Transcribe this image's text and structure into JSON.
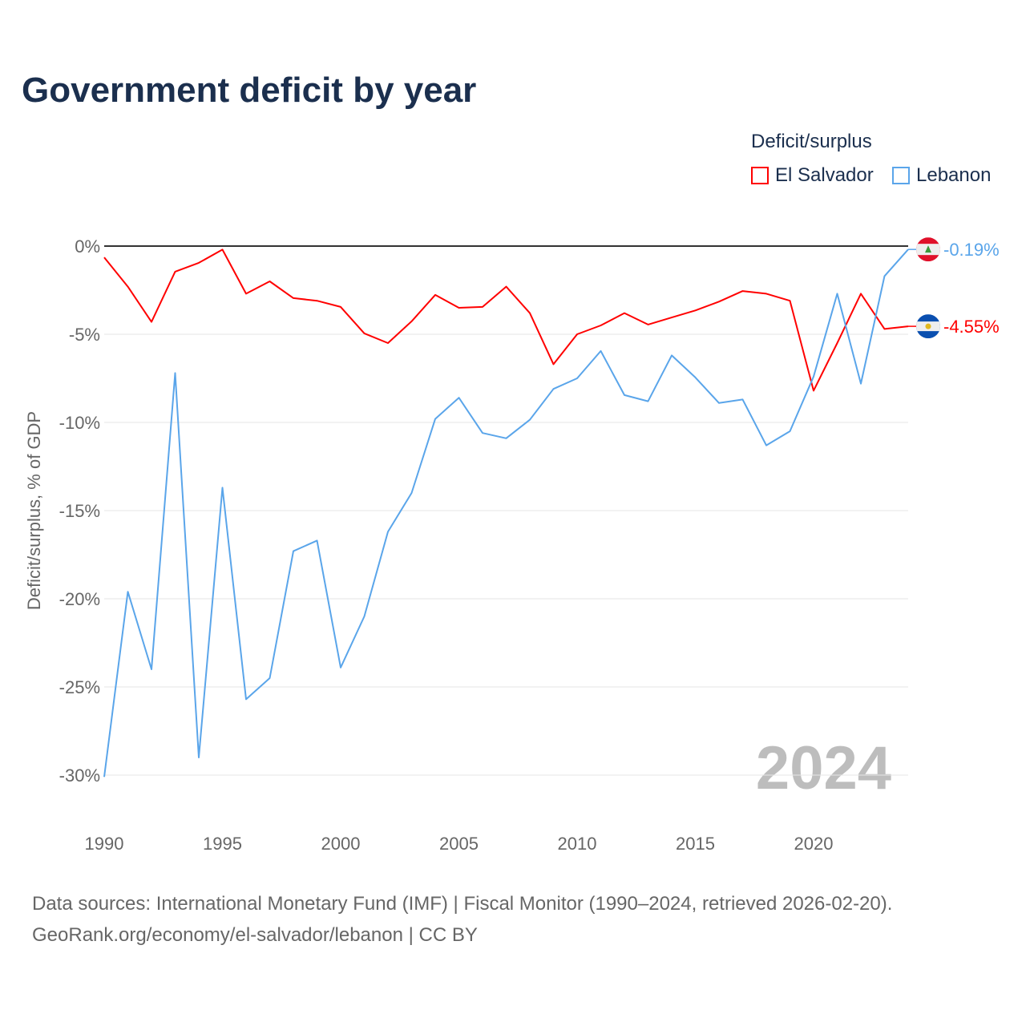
{
  "title": "Government deficit by year",
  "legend": {
    "title": "Deficit/surplus",
    "items": [
      {
        "label": "El Salvador",
        "color": "#ff0000"
      },
      {
        "label": "Lebanon",
        "color": "#5aa5ea"
      }
    ]
  },
  "year_watermark": "2024",
  "source": {
    "line1": "Data sources: International Monetary Fund (IMF) | Fiscal Monitor (1990–2024, retrieved 2026-02-20).",
    "line2": "GeoRank.org/economy/el-salvador/lebanon | CC BY"
  },
  "chart_data": {
    "type": "line",
    "title": "Government deficit by year",
    "xlabel": "",
    "ylabel": "Deficit/surplus, % of GDP",
    "xlim": [
      1990,
      2024
    ],
    "ylim": [
      -30,
      0
    ],
    "x_ticks": [
      1990,
      1995,
      2000,
      2005,
      2010,
      2015,
      2020
    ],
    "x_tick_labels": [
      "1990",
      "1995",
      "2000",
      "2005",
      "2010",
      "2015",
      "2020"
    ],
    "y_ticks": [
      0,
      -5,
      -10,
      -15,
      -20,
      -25,
      -30
    ],
    "y_tick_labels": [
      "0%",
      "-5%",
      "-10%",
      "-15%",
      "-20%",
      "-25%",
      "-30%"
    ],
    "grid": true,
    "legend_position": "top-right",
    "x": [
      1990,
      1991,
      1992,
      1993,
      1994,
      1995,
      1996,
      1997,
      1998,
      1999,
      2000,
      2001,
      2002,
      2003,
      2004,
      2005,
      2006,
      2007,
      2008,
      2009,
      2010,
      2011,
      2012,
      2013,
      2014,
      2015,
      2016,
      2017,
      2018,
      2019,
      2020,
      2021,
      2022,
      2023,
      2024
    ],
    "series": [
      {
        "name": "El Salvador",
        "color": "#ff0000",
        "end_label": "-4.55%",
        "flag": "el-salvador",
        "values": [
          -0.64,
          -2.3,
          -4.3,
          -1.45,
          -0.95,
          -0.2,
          -2.7,
          -2.0,
          -2.95,
          -3.1,
          -3.45,
          -4.95,
          -5.5,
          -4.27,
          -2.77,
          -3.5,
          -3.45,
          -2.3,
          -3.8,
          -6.7,
          -5.0,
          -4.5,
          -3.8,
          -4.45,
          -4.05,
          -3.65,
          -3.15,
          -2.55,
          -2.7,
          -3.1,
          -8.2,
          -5.5,
          -2.7,
          -4.7,
          -4.55
        ]
      },
      {
        "name": "Lebanon",
        "color": "#5aa5ea",
        "end_label": "-0.19%",
        "flag": "lebanon",
        "values": [
          -30.1,
          -19.6,
          -24.0,
          -7.2,
          -29.0,
          -13.7,
          -25.7,
          -24.5,
          -17.3,
          -16.7,
          -23.9,
          -21.0,
          -16.2,
          -14.0,
          -9.8,
          -8.6,
          -10.6,
          -10.9,
          -9.85,
          -8.1,
          -7.5,
          -5.95,
          -8.45,
          -8.8,
          -6.2,
          -7.45,
          -8.9,
          -8.7,
          -11.3,
          -10.5,
          -7.4,
          -2.7,
          -7.8,
          -1.7,
          -0.19
        ]
      }
    ]
  }
}
